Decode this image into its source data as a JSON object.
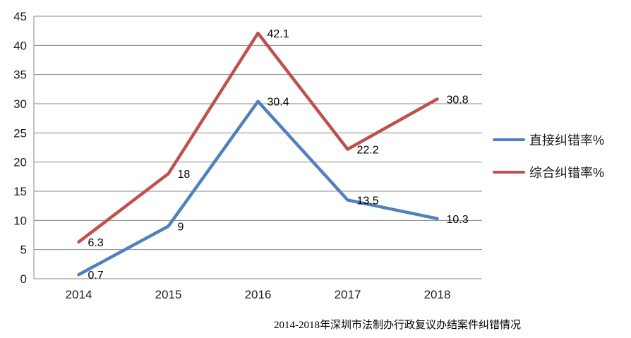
{
  "chart_data": {
    "type": "line",
    "title": "2014-2018年深圳市法制办行政复议办结案件纠错情况",
    "categories": [
      "2014",
      "2015",
      "2016",
      "2017",
      "2018"
    ],
    "series": [
      {
        "name": "直接纠错率%",
        "color": "#4F81BD",
        "values": [
          0.7,
          9,
          30.4,
          13.5,
          10.3
        ],
        "labels": [
          "0.7",
          "9",
          "30.4",
          "13.5",
          "10.3"
        ]
      },
      {
        "name": "综合纠错率%",
        "color": "#C0504D",
        "values": [
          6.3,
          18,
          42.1,
          22.2,
          30.8
        ],
        "labels": [
          "6.3",
          "18",
          "42.1",
          "22.2",
          "30.8"
        ]
      }
    ],
    "ylim": [
      0,
      45
    ],
    "ytick_step": 5,
    "yticks": [
      "0",
      "5",
      "10",
      "15",
      "20",
      "25",
      "30",
      "35",
      "40",
      "45"
    ],
    "grid": true,
    "legend_position": "right"
  },
  "colors": {
    "gridline": "#8a8a8a",
    "axis_text": "#1f1f1f",
    "data_label": "#000000",
    "background": "#ffffff"
  }
}
